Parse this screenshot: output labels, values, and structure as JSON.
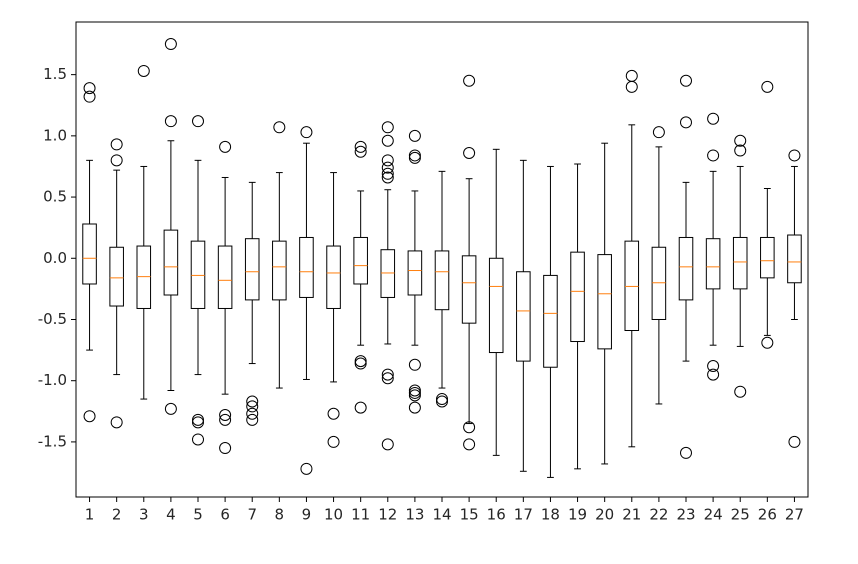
{
  "chart_data": {
    "type": "box",
    "categories": [
      "1",
      "2",
      "3",
      "4",
      "5",
      "6",
      "7",
      "8",
      "9",
      "10",
      "11",
      "12",
      "13",
      "14",
      "15",
      "16",
      "17",
      "18",
      "19",
      "20",
      "21",
      "22",
      "23",
      "24",
      "25",
      "26",
      "27"
    ],
    "boxes": [
      {
        "whislo": -0.75,
        "q1": -0.21,
        "med": 0.0,
        "q3": 0.28,
        "whishi": 0.8,
        "fliers": [
          1.39,
          1.32,
          -1.29
        ]
      },
      {
        "whislo": -0.95,
        "q1": -0.39,
        "med": -0.16,
        "q3": 0.09,
        "whishi": 0.72,
        "fliers": [
          0.93,
          0.8,
          -1.34
        ]
      },
      {
        "whislo": -1.15,
        "q1": -0.41,
        "med": -0.15,
        "q3": 0.1,
        "whishi": 0.75,
        "fliers": [
          1.53
        ]
      },
      {
        "whislo": -1.08,
        "q1": -0.3,
        "med": -0.07,
        "q3": 0.23,
        "whishi": 0.96,
        "fliers": [
          1.75,
          1.12,
          -1.23
        ]
      },
      {
        "whislo": -0.95,
        "q1": -0.41,
        "med": -0.14,
        "q3": 0.14,
        "whishi": 0.8,
        "fliers": [
          1.12,
          -1.32,
          -1.34,
          -1.48
        ]
      },
      {
        "whislo": -1.11,
        "q1": -0.41,
        "med": -0.18,
        "q3": 0.1,
        "whishi": 0.66,
        "fliers": [
          0.91,
          -1.28,
          -1.32,
          -1.55
        ]
      },
      {
        "whislo": -0.86,
        "q1": -0.34,
        "med": -0.11,
        "q3": 0.16,
        "whishi": 0.62,
        "fliers": [
          -1.17,
          -1.21,
          -1.27,
          -1.32
        ]
      },
      {
        "whislo": -1.06,
        "q1": -0.34,
        "med": -0.07,
        "q3": 0.14,
        "whishi": 0.7,
        "fliers": [
          1.07
        ]
      },
      {
        "whislo": -0.99,
        "q1": -0.32,
        "med": -0.11,
        "q3": 0.17,
        "whishi": 0.94,
        "fliers": [
          1.03,
          -1.72
        ]
      },
      {
        "whislo": -1.01,
        "q1": -0.41,
        "med": -0.12,
        "q3": 0.1,
        "whishi": 0.7,
        "fliers": [
          -1.27,
          -1.5
        ]
      },
      {
        "whislo": -0.71,
        "q1": -0.21,
        "med": -0.06,
        "q3": 0.17,
        "whishi": 0.55,
        "fliers": [
          0.91,
          0.87,
          -0.84,
          -0.86,
          -1.22
        ]
      },
      {
        "whislo": -0.7,
        "q1": -0.32,
        "med": -0.12,
        "q3": 0.07,
        "whishi": 0.56,
        "fliers": [
          1.07,
          0.96,
          0.8,
          0.74,
          0.69,
          0.66,
          -0.95,
          -0.98,
          -1.52
        ]
      },
      {
        "whislo": -0.71,
        "q1": -0.3,
        "med": -0.1,
        "q3": 0.06,
        "whishi": 0.55,
        "fliers": [
          1.0,
          0.84,
          0.82,
          -0.87,
          -1.08,
          -1.1,
          -1.12,
          -1.22
        ]
      },
      {
        "whislo": -1.06,
        "q1": -0.42,
        "med": -0.11,
        "q3": 0.06,
        "whishi": 0.71,
        "fliers": [
          -1.15,
          -1.17
        ]
      },
      {
        "whislo": -1.35,
        "q1": -0.53,
        "med": -0.2,
        "q3": 0.02,
        "whishi": 0.65,
        "fliers": [
          1.45,
          0.86,
          -1.38,
          -1.52
        ]
      },
      {
        "whislo": -1.61,
        "q1": -0.77,
        "med": -0.23,
        "q3": 0.0,
        "whishi": 0.89,
        "fliers": []
      },
      {
        "whislo": -1.74,
        "q1": -0.84,
        "med": -0.43,
        "q3": -0.11,
        "whishi": 0.8,
        "fliers": []
      },
      {
        "whislo": -1.79,
        "q1": -0.89,
        "med": -0.45,
        "q3": -0.14,
        "whishi": 0.75,
        "fliers": []
      },
      {
        "whislo": -1.72,
        "q1": -0.68,
        "med": -0.27,
        "q3": 0.05,
        "whishi": 0.77,
        "fliers": []
      },
      {
        "whislo": -1.68,
        "q1": -0.74,
        "med": -0.29,
        "q3": 0.03,
        "whishi": 0.94,
        "fliers": []
      },
      {
        "whislo": -1.54,
        "q1": -0.59,
        "med": -0.23,
        "q3": 0.14,
        "whishi": 1.09,
        "fliers": [
          1.49,
          1.4
        ]
      },
      {
        "whislo": -1.19,
        "q1": -0.5,
        "med": -0.2,
        "q3": 0.09,
        "whishi": 0.91,
        "fliers": [
          1.03
        ]
      },
      {
        "whislo": -0.84,
        "q1": -0.34,
        "med": -0.07,
        "q3": 0.17,
        "whishi": 0.62,
        "fliers": [
          1.45,
          1.11,
          -1.59
        ]
      },
      {
        "whislo": -0.71,
        "q1": -0.25,
        "med": -0.07,
        "q3": 0.16,
        "whishi": 0.71,
        "fliers": [
          1.14,
          0.84,
          -0.88,
          -0.95
        ]
      },
      {
        "whislo": -0.72,
        "q1": -0.25,
        "med": -0.03,
        "q3": 0.17,
        "whishi": 0.75,
        "fliers": [
          0.96,
          0.88,
          -1.09
        ]
      },
      {
        "whislo": -0.63,
        "q1": -0.16,
        "med": -0.02,
        "q3": 0.17,
        "whishi": 0.57,
        "fliers": [
          1.4,
          -0.69
        ]
      },
      {
        "whislo": -0.5,
        "q1": -0.2,
        "med": -0.03,
        "q3": 0.19,
        "whishi": 0.75,
        "fliers": [
          0.84,
          -1.5
        ]
      }
    ],
    "ylim": [
      -1.95,
      1.93
    ],
    "yticks": [
      {
        "value": -1.5,
        "label": "-1.5"
      },
      {
        "value": -1,
        "label": "-1.0"
      },
      {
        "value": -0.5,
        "label": "-0.5"
      },
      {
        "value": 0,
        "label": "0.0"
      },
      0.5,
      {
        "value": 1,
        "label": "1.0"
      },
      1.5
    ],
    "box_color": "#000000",
    "median_color": "#ff7f0e",
    "grid": false
  }
}
